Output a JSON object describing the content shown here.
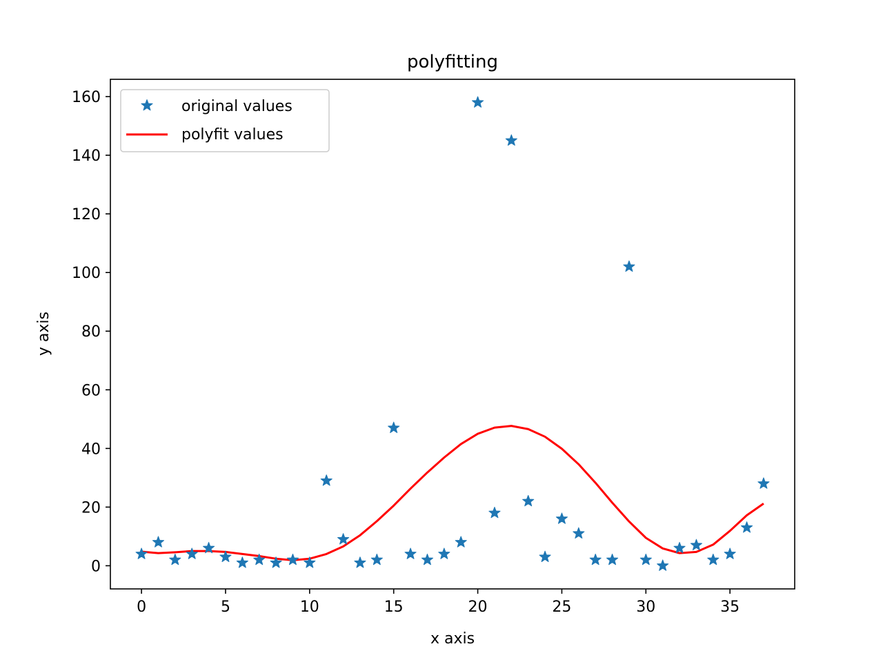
{
  "chart_data": {
    "type": "scatter",
    "title": "polyfitting",
    "xlabel": "x axis",
    "ylabel": "y axis",
    "xlim": [
      -1.85,
      38.85
    ],
    "ylim": [
      -7.9,
      165.9
    ],
    "xticks": [
      0,
      5,
      10,
      15,
      20,
      25,
      30,
      35
    ],
    "yticks": [
      0,
      20,
      40,
      60,
      80,
      100,
      120,
      140,
      160
    ],
    "grid": false,
    "legend_position": "top-left",
    "series": [
      {
        "name": "original values",
        "kind": "markers",
        "marker": "star",
        "color": "#1f77b4",
        "x": [
          0,
          1,
          2,
          3,
          4,
          5,
          6,
          7,
          8,
          9,
          10,
          11,
          12,
          13,
          14,
          15,
          16,
          17,
          18,
          19,
          20,
          21,
          22,
          23,
          24,
          25,
          26,
          27,
          28,
          29,
          30,
          31,
          32,
          33,
          34,
          35,
          36,
          37
        ],
        "y": [
          4,
          8,
          2,
          4,
          6,
          3,
          1,
          2,
          1,
          2,
          1,
          29,
          9,
          1,
          2,
          47,
          4,
          2,
          4,
          8,
          158,
          18,
          145,
          22,
          3,
          16,
          11,
          2,
          2,
          102,
          2,
          0,
          6,
          7,
          2,
          4,
          13,
          28
        ]
      },
      {
        "name": "polyfit values",
        "kind": "line",
        "color": "#ff0000",
        "x": [
          0,
          1,
          2,
          3,
          4,
          5,
          6,
          7,
          8,
          9,
          10,
          11,
          12,
          13,
          14,
          15,
          16,
          17,
          18,
          19,
          20,
          21,
          22,
          23,
          24,
          25,
          26,
          27,
          28,
          29,
          30,
          31,
          32,
          33,
          34,
          35,
          36,
          37
        ],
        "y": [
          4.8,
          4.3,
          4.6,
          5.0,
          5.0,
          4.7,
          4.0,
          3.3,
          2.4,
          1.9,
          2.4,
          4.0,
          6.6,
          10.4,
          15.2,
          20.5,
          26.3,
          31.8,
          36.9,
          41.5,
          45.0,
          47.1,
          47.7,
          46.6,
          44.0,
          39.9,
          34.6,
          28.3,
          21.5,
          15.1,
          9.5,
          5.9,
          4.3,
          4.7,
          7.2,
          11.9,
          17.2,
          21.2
        ]
      }
    ]
  }
}
